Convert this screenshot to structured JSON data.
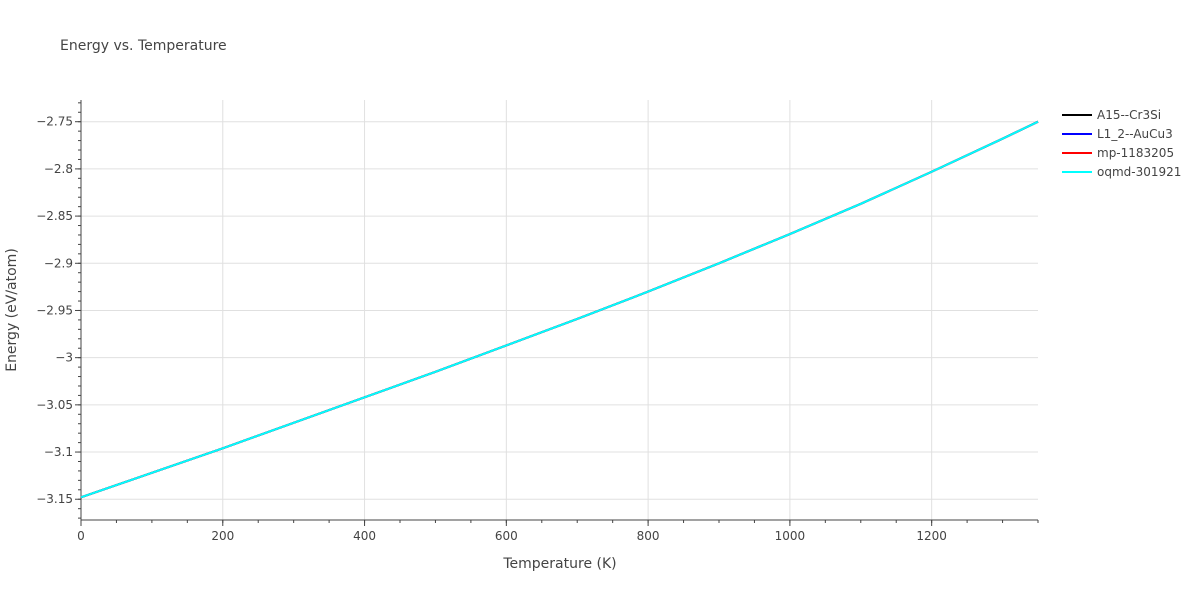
{
  "chart_data": {
    "type": "line",
    "title": "Energy vs. Temperature",
    "xlabel": "Temperature (K)",
    "ylabel": "Energy (eV/atom)",
    "xlim": [
      0,
      1350
    ],
    "ylim": [
      -3.172,
      -2.727
    ],
    "x_ticks": [
      0,
      200,
      400,
      600,
      800,
      1000,
      1200
    ],
    "x_tick_labels": [
      "0",
      "200",
      "400",
      "600",
      "800",
      "1000",
      "1200"
    ],
    "y_ticks": [
      -3.15,
      -3.1,
      -3.05,
      -3.0,
      -2.95,
      -2.9,
      -2.85,
      -2.8,
      -2.75
    ],
    "y_tick_labels": [
      "−3.15",
      "−3.1",
      "−3.05",
      "−3",
      "−2.95",
      "−2.9",
      "−2.85",
      "−2.8",
      "−2.75"
    ],
    "grid": true,
    "legend_position": "top-right",
    "x": [
      0,
      100,
      200,
      300,
      400,
      500,
      600,
      700,
      800,
      900,
      1000,
      1100,
      1200,
      1300,
      1350
    ],
    "series": [
      {
        "name": "A15--Cr3Si",
        "color": "#000000",
        "values": [
          -3.148,
          -3.122,
          -3.096,
          -3.069,
          -3.042,
          -3.015,
          -2.987,
          -2.959,
          -2.93,
          -2.9,
          -2.869,
          -2.837,
          -2.803,
          -2.768,
          -2.75
        ]
      },
      {
        "name": "L1_2--AuCu3",
        "color": "#0000ff",
        "values": [
          -3.148,
          -3.122,
          -3.096,
          -3.069,
          -3.042,
          -3.015,
          -2.987,
          -2.959,
          -2.93,
          -2.9,
          -2.869,
          -2.837,
          -2.803,
          -2.768,
          -2.75
        ]
      },
      {
        "name": "mp-1183205",
        "color": "#ff0000",
        "values": [
          -3.148,
          -3.122,
          -3.096,
          -3.069,
          -3.042,
          -3.015,
          -2.987,
          -2.959,
          -2.93,
          -2.9,
          -2.869,
          -2.837,
          -2.803,
          -2.768,
          -2.75
        ]
      },
      {
        "name": "oqmd-301921",
        "color": "#00ffff",
        "values": [
          -3.148,
          -3.122,
          -3.096,
          -3.069,
          -3.042,
          -3.015,
          -2.987,
          -2.959,
          -2.93,
          -2.9,
          -2.869,
          -2.837,
          -2.803,
          -2.768,
          -2.75
        ]
      }
    ]
  }
}
